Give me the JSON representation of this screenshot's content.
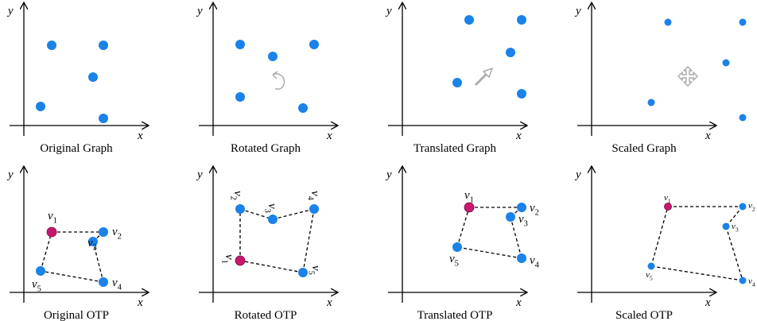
{
  "axes": {
    "x": "x",
    "y": "y"
  },
  "panels": [
    {
      "caption": "Original Graph"
    },
    {
      "caption": "Rotated Graph"
    },
    {
      "caption": "Translated Graph"
    },
    {
      "caption": "Scaled Graph"
    },
    {
      "caption": "Original OTP",
      "vertices": [
        {
          "name": "v",
          "index": "1"
        },
        {
          "name": "v",
          "index": "2"
        },
        {
          "name": "v",
          "index": "3"
        },
        {
          "name": "v",
          "index": "4"
        },
        {
          "name": "v",
          "index": "5"
        }
      ]
    },
    {
      "caption": "Rotated OTP",
      "vertices": [
        {
          "name": "v",
          "index": "1"
        },
        {
          "name": "v",
          "index": "2"
        },
        {
          "name": "v",
          "index": "3"
        },
        {
          "name": "v",
          "index": "4"
        },
        {
          "name": "v",
          "index": "5"
        }
      ]
    },
    {
      "caption": "Translated OTP",
      "vertices": [
        {
          "name": "v",
          "index": "1"
        },
        {
          "name": "v",
          "index": "2"
        },
        {
          "name": "v",
          "index": "3"
        },
        {
          "name": "v",
          "index": "4"
        },
        {
          "name": "v",
          "index": "5"
        }
      ]
    },
    {
      "caption": "Scaled OTP",
      "vertices": [
        {
          "name": "v",
          "index": "1"
        },
        {
          "name": "v",
          "index": "2"
        },
        {
          "name": "v",
          "index": "3"
        },
        {
          "name": "v",
          "index": "4"
        },
        {
          "name": "v",
          "index": "5"
        }
      ]
    }
  ]
}
